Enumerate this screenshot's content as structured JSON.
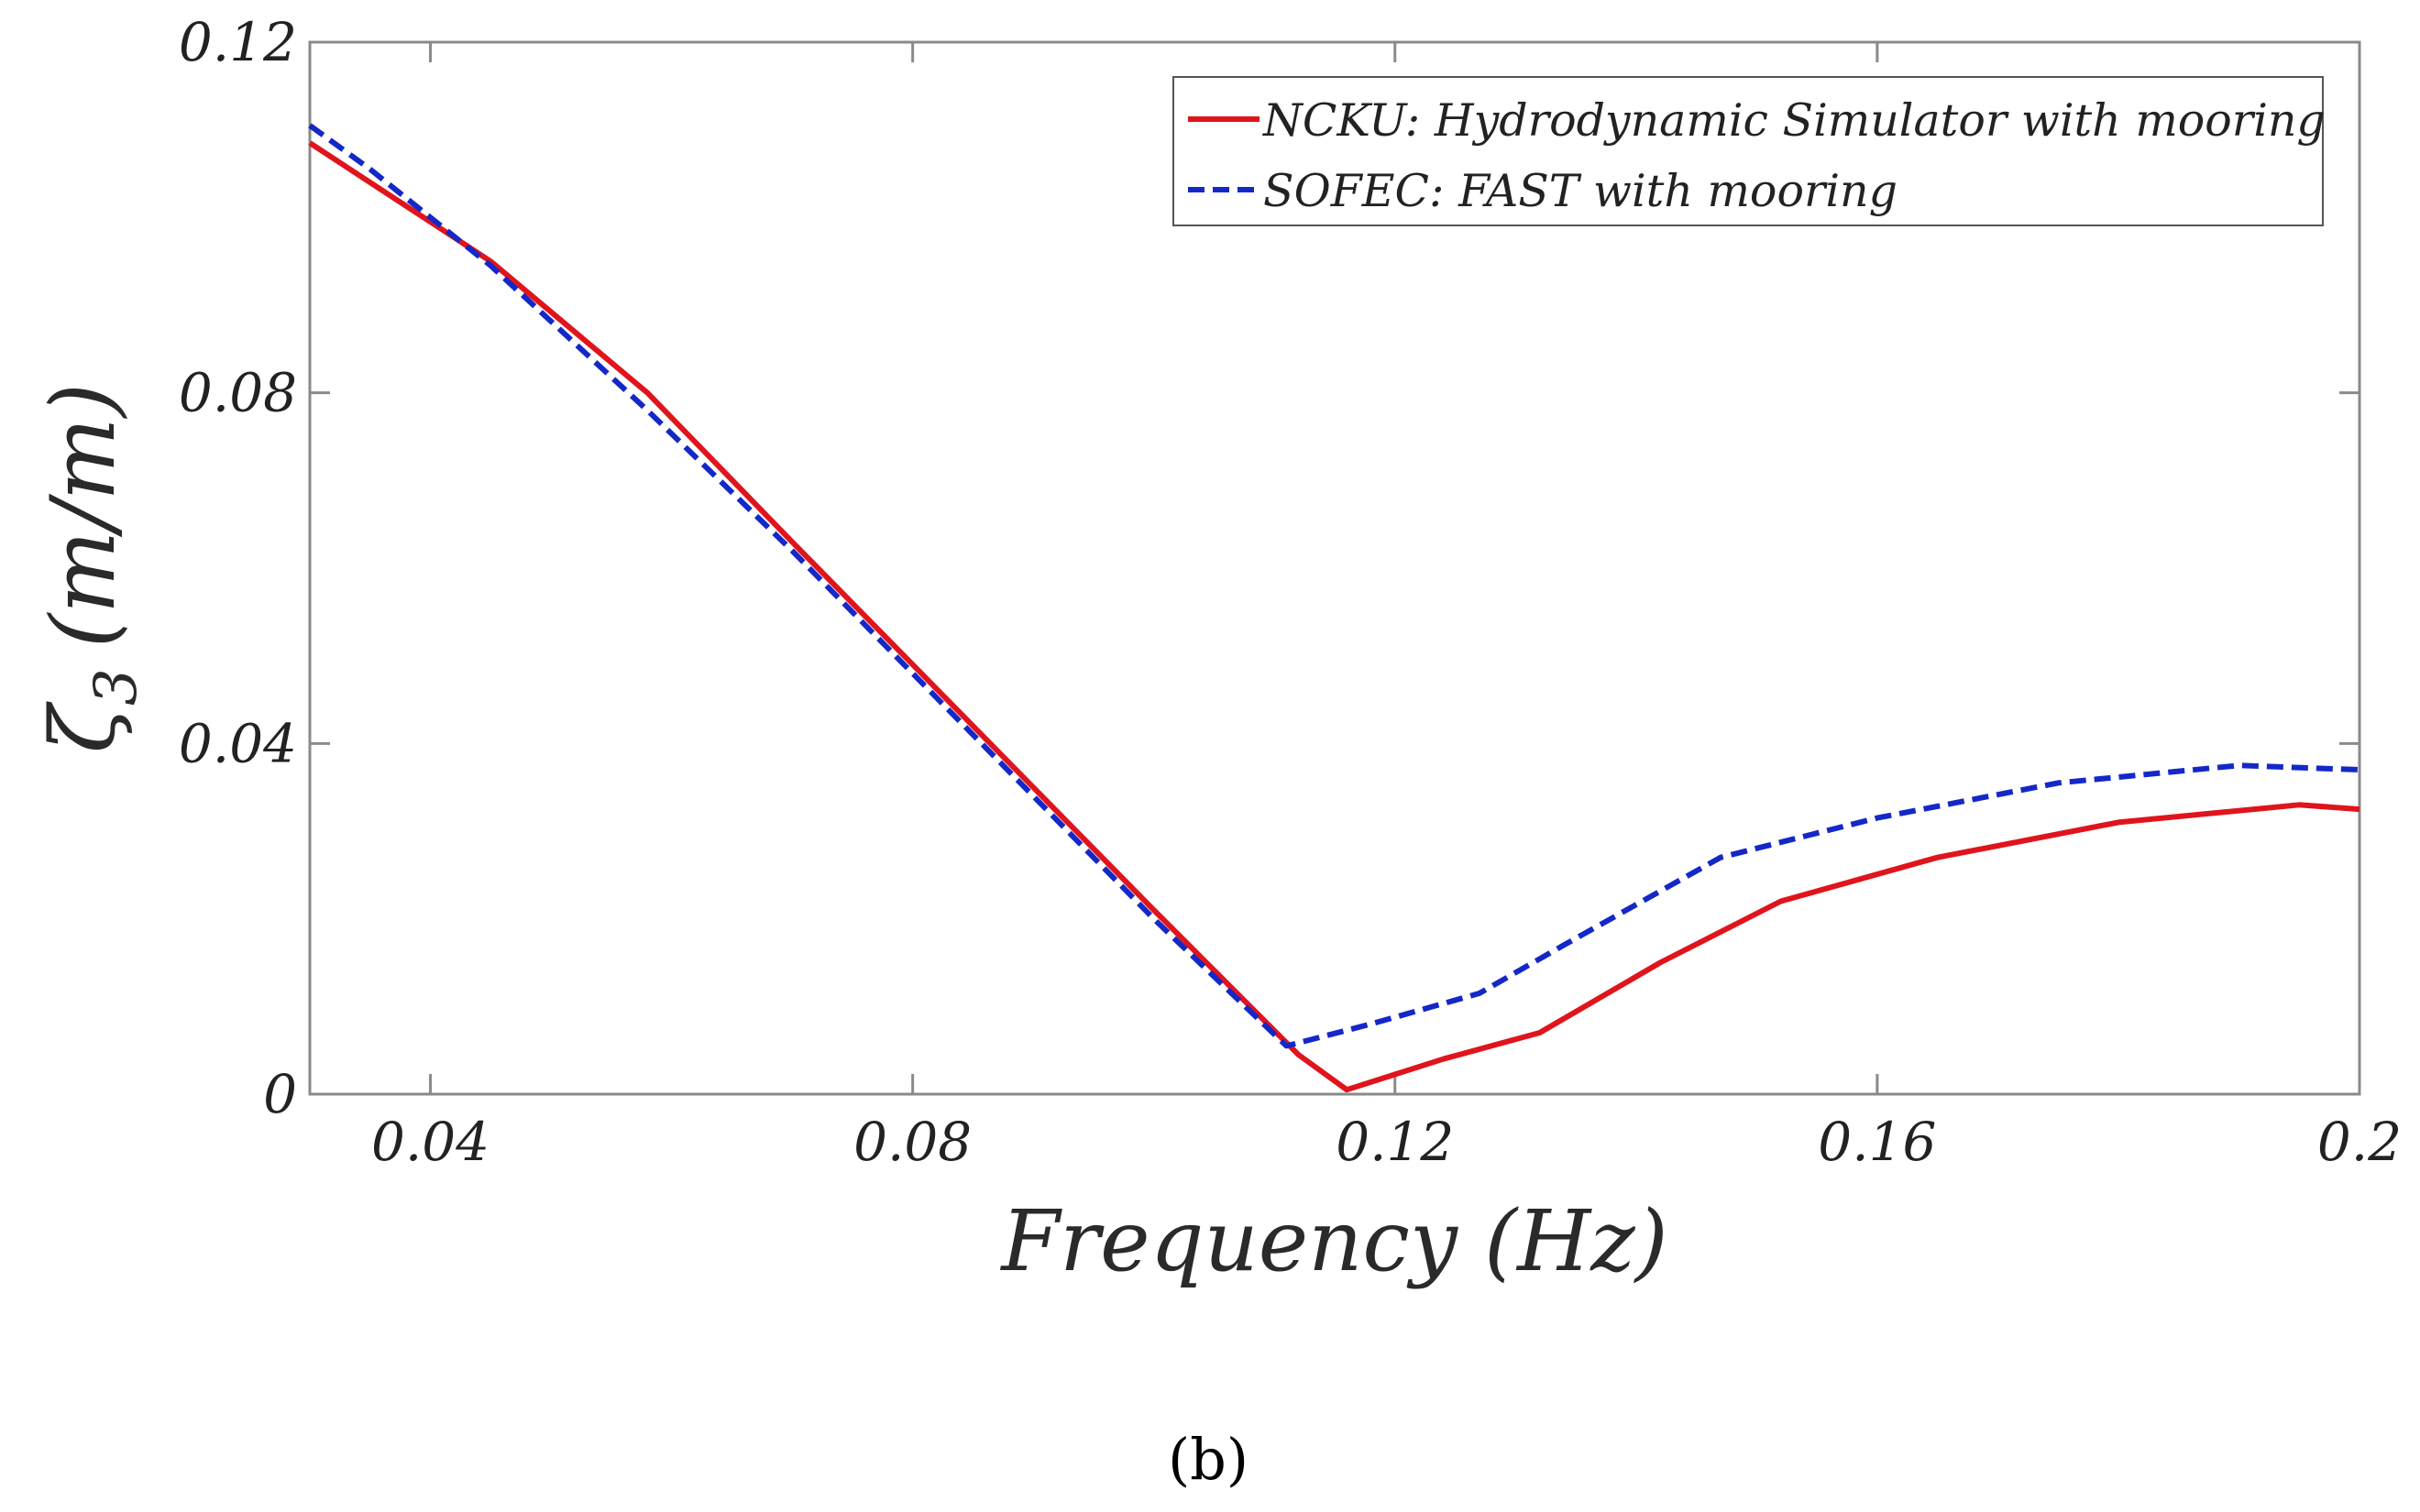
{
  "chart_data": {
    "type": "line",
    "xlabel": "Frequency (Hz)",
    "ylabel_symbol": "ζ",
    "ylabel_subscript": "3",
    "ylabel_unit": "(m/m)",
    "xlim": [
      0.03,
      0.2
    ],
    "ylim": [
      0,
      0.12
    ],
    "xticks": [
      0.04,
      0.08,
      0.12,
      0.16,
      0.2
    ],
    "xtick_labels": [
      "0.04",
      "0.08",
      "0.12",
      "0.16",
      "0.2"
    ],
    "yticks": [
      0,
      0.04,
      0.08,
      0.12
    ],
    "ytick_labels": [
      "0",
      "0.04",
      "0.08",
      "0.12"
    ],
    "grid": false,
    "legend_position": "top-right",
    "series": [
      {
        "name": "NCKU: Hydrodynamic Simulator with mooring",
        "color": "#e0141c",
        "dash": "solid",
        "x": [
          0.03,
          0.035,
          0.045,
          0.058,
          0.07,
          0.08,
          0.09,
          0.1,
          0.112,
          0.116,
          0.124,
          0.132,
          0.142,
          0.152,
          0.165,
          0.18,
          0.195,
          0.2
        ],
        "y": [
          0.1085,
          0.104,
          0.095,
          0.08,
          0.063,
          0.049,
          0.035,
          0.021,
          0.0045,
          0.0005,
          0.004,
          0.007,
          0.015,
          0.022,
          0.027,
          0.031,
          0.033,
          0.0325
        ]
      },
      {
        "name": "SOFEC: FAST with mooring",
        "color": "#1428c8",
        "dash": "dashed",
        "x": [
          0.03,
          0.035,
          0.045,
          0.058,
          0.07,
          0.08,
          0.09,
          0.1,
          0.111,
          0.118,
          0.127,
          0.134,
          0.147,
          0.16,
          0.175,
          0.19,
          0.2
        ],
        "y": [
          0.1105,
          0.1055,
          0.0945,
          0.078,
          0.062,
          0.048,
          0.034,
          0.02,
          0.0055,
          0.008,
          0.0115,
          0.017,
          0.027,
          0.0315,
          0.0355,
          0.0375,
          0.037
        ]
      }
    ]
  },
  "caption": "(b)"
}
